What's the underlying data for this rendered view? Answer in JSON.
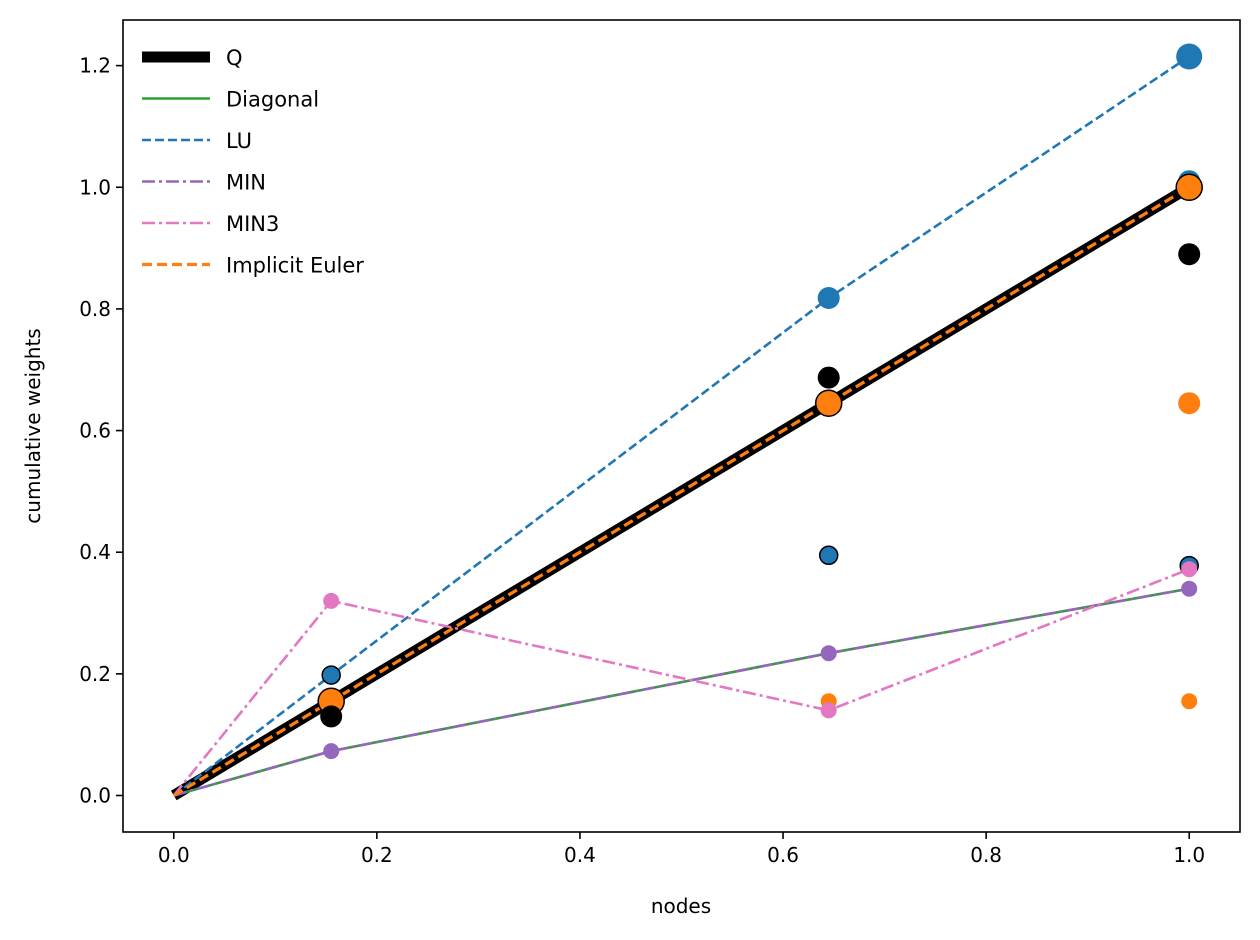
{
  "chart_data": {
    "type": "line",
    "title": "",
    "xlabel": "nodes",
    "ylabel": "cumulative weights",
    "xlim": [
      -0.05,
      1.05
    ],
    "ylim": [
      -0.06,
      1.275
    ],
    "xticks": [
      0.0,
      0.2,
      0.4,
      0.6,
      0.8,
      1.0
    ],
    "yticks": [
      0.0,
      0.2,
      0.4,
      0.6,
      0.8,
      1.0,
      1.2
    ],
    "xtick_labels": [
      "0.0",
      "0.2",
      "0.4",
      "0.6",
      "0.8",
      "1.0"
    ],
    "ytick_labels": [
      "0.0",
      "0.2",
      "0.4",
      "0.6",
      "0.8",
      "1.0",
      "1.2"
    ],
    "grid": false,
    "legend_position": "top-left",
    "series": [
      {
        "name": "Q",
        "color": "#000000",
        "linestyle": "solid",
        "x": [
          0.0,
          0.155,
          0.645,
          1.0
        ],
        "y": [
          0.0,
          0.155,
          0.645,
          1.0
        ]
      },
      {
        "name": "Diagonal",
        "color": "#2ca02c",
        "linestyle": "solid",
        "x": [
          0.0,
          0.155,
          0.645,
          1.0
        ],
        "y": [
          0.0,
          0.073,
          0.234,
          0.34
        ]
      },
      {
        "name": "LU",
        "color": "#1f77b4",
        "linestyle": "dashed",
        "x": [
          0.0,
          0.155,
          0.645,
          1.0
        ],
        "y": [
          0.0,
          0.198,
          0.818,
          1.215
        ]
      },
      {
        "name": "MIN",
        "color": "#9467bd",
        "linestyle": "dashdot",
        "x": [
          0.0,
          0.155,
          0.645,
          1.0
        ],
        "y": [
          0.0,
          0.073,
          0.234,
          0.34
        ]
      },
      {
        "name": "MIN3",
        "color": "#e377c2",
        "linestyle": "dashdot",
        "x": [
          0.0,
          0.155,
          0.645,
          1.0
        ],
        "y": [
          0.0,
          0.32,
          0.14,
          0.372
        ]
      },
      {
        "name": "Implicit Euler",
        "color": "#ff7f0e",
        "linestyle": "dashed",
        "x": [
          0.0,
          0.155,
          0.645,
          1.0
        ],
        "y": [
          0.0,
          0.155,
          0.645,
          1.0
        ]
      }
    ],
    "points": [
      {
        "x": 1.0,
        "y": 1.215,
        "color": "#1f77b4",
        "r": 13,
        "edge": "none"
      },
      {
        "x": 1.0,
        "y": 1.01,
        "color": "#1f77b4",
        "r": 11,
        "edge": "none"
      },
      {
        "x": 1.0,
        "y": 1.0,
        "color": "#ff7f0e",
        "r": 13,
        "edge": "#000000"
      },
      {
        "x": 1.0,
        "y": 0.89,
        "color": "#000000",
        "r": 11,
        "edge": "none"
      },
      {
        "x": 1.0,
        "y": 0.645,
        "color": "#ff7f0e",
        "r": 11,
        "edge": "none"
      },
      {
        "x": 1.0,
        "y": 0.378,
        "color": "#1f77b4",
        "r": 9,
        "edge": "#000000"
      },
      {
        "x": 1.0,
        "y": 0.372,
        "color": "#e377c2",
        "r": 8,
        "edge": "none"
      },
      {
        "x": 1.0,
        "y": 0.34,
        "color": "#9467bd",
        "r": 8,
        "edge": "none"
      },
      {
        "x": 1.0,
        "y": 0.155,
        "color": "#ff7f0e",
        "r": 8,
        "edge": "none"
      },
      {
        "x": 0.645,
        "y": 0.818,
        "color": "#1f77b4",
        "r": 11,
        "edge": "none"
      },
      {
        "x": 0.645,
        "y": 0.687,
        "color": "#000000",
        "r": 11,
        "edge": "none"
      },
      {
        "x": 0.645,
        "y": 0.645,
        "color": "#ff7f0e",
        "r": 13,
        "edge": "#000000"
      },
      {
        "x": 0.645,
        "y": 0.395,
        "color": "#1f77b4",
        "r": 9,
        "edge": "#000000"
      },
      {
        "x": 0.645,
        "y": 0.234,
        "color": "#9467bd",
        "r": 8,
        "edge": "none"
      },
      {
        "x": 0.645,
        "y": 0.155,
        "color": "#ff7f0e",
        "r": 8,
        "edge": "none"
      },
      {
        "x": 0.645,
        "y": 0.14,
        "color": "#e377c2",
        "r": 8,
        "edge": "none"
      },
      {
        "x": 0.155,
        "y": 0.32,
        "color": "#e377c2",
        "r": 8,
        "edge": "none"
      },
      {
        "x": 0.155,
        "y": 0.198,
        "color": "#1f77b4",
        "r": 9,
        "edge": "#000000"
      },
      {
        "x": 0.155,
        "y": 0.155,
        "color": "#ff7f0e",
        "r": 13,
        "edge": "#000000"
      },
      {
        "x": 0.155,
        "y": 0.13,
        "color": "#000000",
        "r": 11,
        "edge": "none"
      },
      {
        "x": 0.155,
        "y": 0.073,
        "color": "#9467bd",
        "r": 8,
        "edge": "none"
      }
    ]
  }
}
